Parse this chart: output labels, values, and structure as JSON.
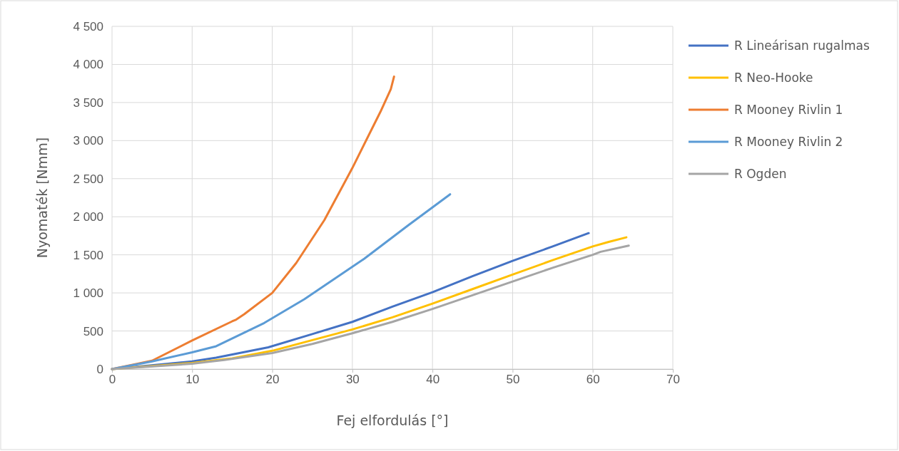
{
  "chart_data": {
    "type": "line",
    "xlabel": "Fej elfordulás [°]",
    "ylabel": "Nyomaték [Nmm]",
    "xlim": [
      0,
      70
    ],
    "xticks": [
      0,
      10,
      20,
      30,
      40,
      50,
      60,
      70
    ],
    "ylim": [
      0,
      4500
    ],
    "yticks": [
      0,
      500,
      {
        "value": 1000,
        "label": "1 000"
      },
      {
        "value": 1500,
        "label": "1 500"
      },
      {
        "value": 2000,
        "label": "2 000"
      },
      {
        "value": 2500,
        "label": "2 500"
      },
      {
        "value": 3000,
        "label": "3 000"
      },
      {
        "value": 3500,
        "label": "3 500"
      },
      {
        "value": 4000,
        "label": "4 000"
      },
      {
        "value": 4500,
        "label": "4 500"
      }
    ],
    "grid": true,
    "legend": "right",
    "marker": "none",
    "line_style": "solid",
    "series": [
      {
        "name": "R Lineárisan rugalmas",
        "color": "#4472c4",
        "x": [
          0,
          10,
          13,
          19.5,
          25,
          30,
          35,
          40,
          45,
          50,
          55,
          59.5
        ],
        "values": [
          0,
          100,
          150,
          285,
          460,
          620,
          820,
          1010,
          1220,
          1420,
          1610,
          1785
        ]
      },
      {
        "name": "R Neo-Hooke",
        "color": "#ffc000",
        "x": [
          0,
          10,
          15,
          20,
          25,
          30,
          35,
          40,
          45,
          50,
          55,
          60,
          62,
          64.2
        ],
        "values": [
          0,
          80,
          140,
          240,
          380,
          520,
          680,
          860,
          1050,
          1240,
          1430,
          1610,
          1670,
          1730
        ]
      },
      {
        "name": "R Mooney Rivlin 1",
        "color": "#ed7d31",
        "x": [
          0,
          5,
          10,
          15,
          15.5,
          16.5,
          20,
          23,
          26.5,
          30,
          33.5,
          34.8,
          35.2
        ],
        "values": [
          0,
          110,
          375,
          627,
          650,
          720,
          1000,
          1394,
          1955,
          2640,
          3377,
          3676,
          3840
        ]
      },
      {
        "name": "R Mooney Rivlin 2",
        "color": "#5b9bd5",
        "x": [
          0,
          5,
          10,
          13,
          19,
          24,
          31.5,
          37,
          42.2
        ],
        "values": [
          0,
          100,
          220,
          300,
          605,
          917,
          1450,
          1890,
          2295
        ]
      },
      {
        "name": "R Ogden",
        "color": "#a5a5a5",
        "x": [
          0,
          10,
          14,
          20,
          25,
          30,
          35,
          40,
          45,
          50,
          55,
          60,
          61,
          64.5
        ],
        "values": [
          0,
          70,
          120,
          210,
          330,
          470,
          620,
          790,
          970,
          1150,
          1330,
          1500,
          1540,
          1620
        ]
      }
    ]
  }
}
